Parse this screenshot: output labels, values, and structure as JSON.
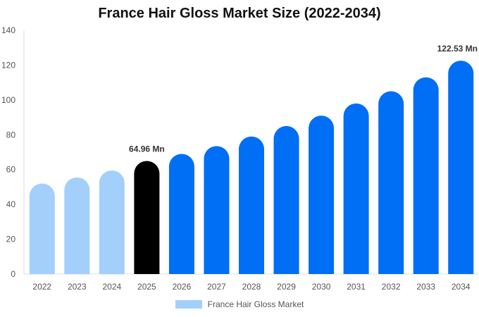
{
  "chart_data": {
    "type": "bar",
    "title": "France Hair Gloss Market Size (2022-2034)",
    "categories": [
      "2022",
      "2023",
      "2024",
      "2025",
      "2026",
      "2027",
      "2028",
      "2029",
      "2030",
      "2031",
      "2032",
      "2033",
      "2034"
    ],
    "series": [
      {
        "name": "France Hair Gloss Market",
        "values": [
          52,
          55.5,
          59.5,
          64.96,
          69,
          73.5,
          79,
          85,
          91,
          98,
          105,
          113,
          122.53
        ]
      }
    ],
    "ylim": [
      0,
      140
    ],
    "yticks": [
      0,
      20,
      40,
      60,
      80,
      100,
      120,
      140
    ],
    "grid": false,
    "legend": "bottom",
    "annotations": [
      {
        "category": "2025",
        "text": "64.96 Mn"
      },
      {
        "category": "2034",
        "text": "122.53 Mn"
      }
    ],
    "colors": {
      "historical": "#a3cffb",
      "base_year": "#000000",
      "forecast": "#006ef5"
    }
  }
}
